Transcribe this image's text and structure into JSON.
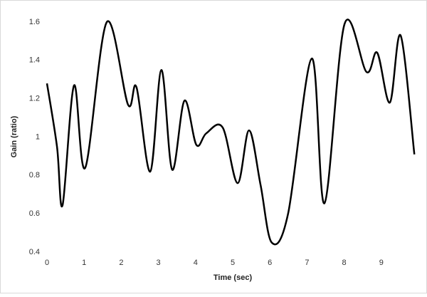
{
  "chart_data": {
    "type": "line",
    "x_label": "Time (sec)",
    "y_label": "Gain (ratio)",
    "x": [
      0,
      0.27,
      0.42,
      0.73,
      1.03,
      1.61,
      2.18,
      2.41,
      2.78,
      3.08,
      3.37,
      3.7,
      4.02,
      4.29,
      4.73,
      5.13,
      5.44,
      5.75,
      6.05,
      6.49,
      7.13,
      7.47,
      8.01,
      8.6,
      8.89,
      9.23,
      9.52,
      9.89
    ],
    "series": [
      {
        "name": "Gain",
        "color": "#000000",
        "values": [
          1.28,
          0.95,
          0.645,
          1.27,
          0.84,
          1.6,
          1.17,
          1.26,
          0.82,
          1.35,
          0.83,
          1.19,
          0.96,
          1.02,
          1.05,
          0.76,
          1.035,
          0.75,
          0.45,
          0.6,
          1.41,
          0.655,
          1.59,
          1.34,
          1.44,
          1.18,
          1.53,
          0.91
        ]
      }
    ],
    "xlim": [
      0,
      10
    ],
    "xticks": [
      0,
      1,
      2,
      3,
      4,
      5,
      6,
      7,
      8,
      9
    ],
    "ylim": [
      0.4,
      1.6
    ],
    "yticks": [
      0.4,
      0.6,
      0.8,
      1,
      1.2,
      1.4,
      1.6
    ],
    "grid": false
  }
}
